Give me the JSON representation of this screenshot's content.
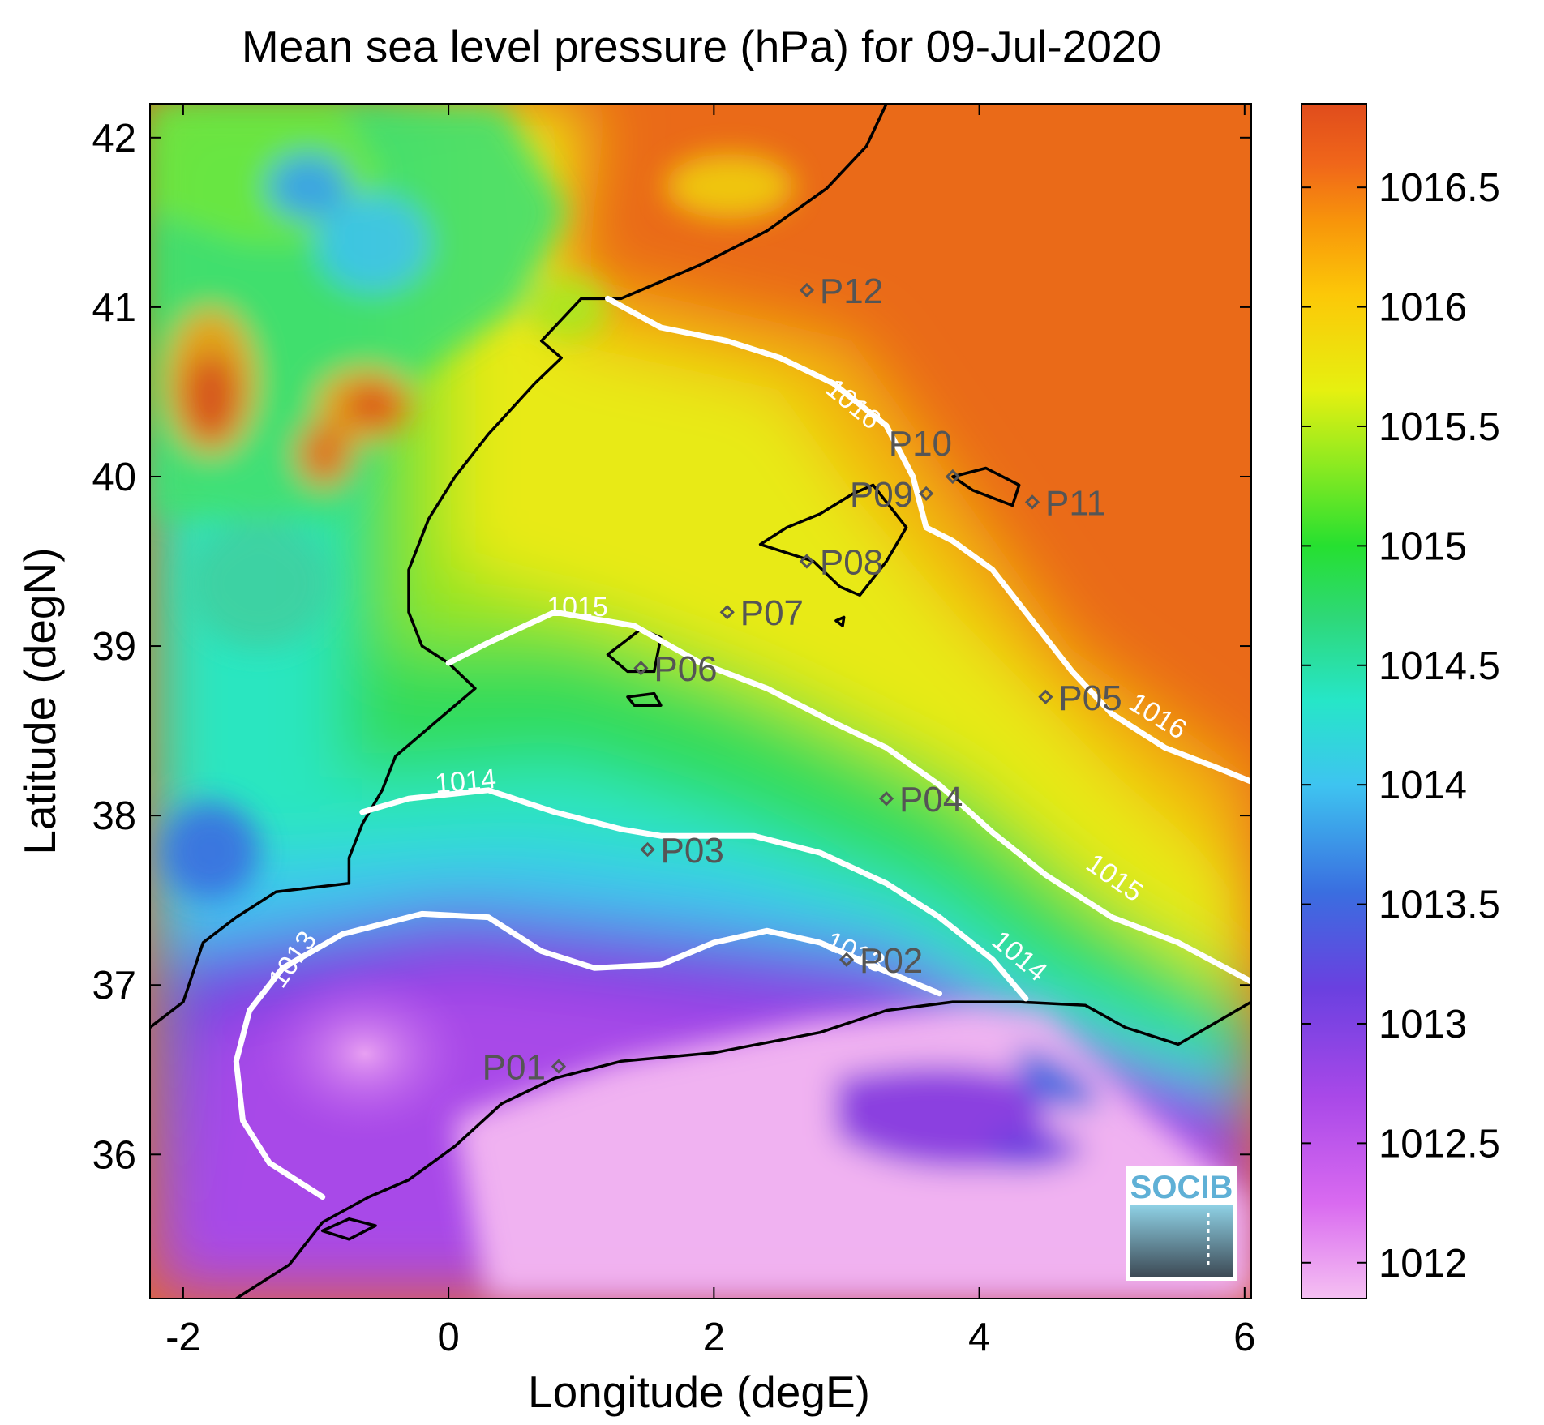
{
  "title": "Mean sea level pressure (hPa) for 09-Jul-2020",
  "x_axis": {
    "label": "Longitude (degE)",
    "range": [
      -2.25,
      6.05
    ],
    "ticks": [
      -2,
      0,
      2,
      4,
      6
    ],
    "tick_labels": [
      "-2",
      "0",
      "2",
      "4",
      "6"
    ]
  },
  "y_axis": {
    "label": "Latitude (degN)",
    "range": [
      35.15,
      42.2
    ],
    "ticks": [
      36,
      37,
      38,
      39,
      40,
      41,
      42
    ],
    "tick_labels": [
      "36",
      "37",
      "38",
      "39",
      "40",
      "41",
      "42"
    ]
  },
  "colorbar": {
    "range": [
      1011.85,
      1016.85
    ],
    "ticks": [
      1012,
      1012.5,
      1013,
      1013.5,
      1014,
      1014.5,
      1015,
      1015.5,
      1016,
      1016.5
    ],
    "tick_labels": [
      "1012",
      "1012.5",
      "1013",
      "1013.5",
      "1014",
      "1014.5",
      "1015",
      "1015.5",
      "1016",
      "1016.5"
    ],
    "colors": [
      "#f5c0f2",
      "#d96af0",
      "#a848e8",
      "#6a40e0",
      "#3a6ee0",
      "#3ec4f0",
      "#26e6c8",
      "#2ed878",
      "#26e030",
      "#90ea20",
      "#e6f010",
      "#fcc808",
      "#f8960a",
      "#f0661a",
      "#e04c1c"
    ]
  },
  "points": [
    {
      "label": "P01",
      "lon": 0.83,
      "lat": 36.52,
      "label_side": "left"
    },
    {
      "label": "P02",
      "lon": 3.0,
      "lat": 37.15,
      "label_side": "right"
    },
    {
      "label": "P03",
      "lon": 1.5,
      "lat": 37.8,
      "label_side": "right"
    },
    {
      "label": "P04",
      "lon": 3.3,
      "lat": 38.1,
      "label_side": "right"
    },
    {
      "label": "P05",
      "lon": 4.5,
      "lat": 38.7,
      "label_side": "right"
    },
    {
      "label": "P06",
      "lon": 1.45,
      "lat": 38.87,
      "label_side": "right"
    },
    {
      "label": "P07",
      "lon": 2.1,
      "lat": 39.2,
      "label_side": "right"
    },
    {
      "label": "P08",
      "lon": 2.7,
      "lat": 39.5,
      "label_side": "right"
    },
    {
      "label": "P09",
      "lon": 3.6,
      "lat": 39.9,
      "label_side": "left"
    },
    {
      "label": "P10",
      "lon": 3.8,
      "lat": 40.0,
      "label_side": "above"
    },
    {
      "label": "P11",
      "lon": 4.4,
      "lat": 39.85,
      "label_side": "right"
    },
    {
      "label": "P12",
      "lon": 2.7,
      "lat": 41.1,
      "label_side": "right"
    }
  ],
  "contour_labels": [
    "1013",
    "1013",
    "1014",
    "1014",
    "1015",
    "1015",
    "1016",
    "1016"
  ],
  "contours": [
    {
      "level": 1013,
      "lonlat": [
        [
          -0.95,
          35.75
        ],
        [
          -1.35,
          35.95
        ],
        [
          -1.55,
          36.2
        ],
        [
          -1.6,
          36.55
        ],
        [
          -1.5,
          36.85
        ],
        [
          -1.25,
          37.1
        ],
        [
          -0.8,
          37.3
        ],
        [
          -0.2,
          37.42
        ],
        [
          0.3,
          37.4
        ],
        [
          0.7,
          37.2
        ],
        [
          1.1,
          37.1
        ],
        [
          1.6,
          37.12
        ],
        [
          2.0,
          37.25
        ],
        [
          2.4,
          37.32
        ],
        [
          2.8,
          37.25
        ],
        [
          3.3,
          37.08
        ],
        [
          3.7,
          36.95
        ]
      ]
    },
    {
      "level": 1014,
      "lonlat": [
        [
          -0.65,
          38.02
        ],
        [
          -0.3,
          38.1
        ],
        [
          0.3,
          38.15
        ],
        [
          0.8,
          38.02
        ],
        [
          1.3,
          37.92
        ],
        [
          1.6,
          37.88
        ],
        [
          2.3,
          37.88
        ],
        [
          2.8,
          37.78
        ],
        [
          3.3,
          37.6
        ],
        [
          3.7,
          37.4
        ],
        [
          4.1,
          37.15
        ],
        [
          4.35,
          36.92
        ]
      ]
    },
    {
      "level": 1015,
      "lonlat": [
        [
          0.0,
          38.9
        ],
        [
          0.3,
          39.02
        ],
        [
          0.8,
          39.2
        ],
        [
          1.4,
          39.12
        ],
        [
          1.9,
          38.9
        ],
        [
          2.4,
          38.75
        ],
        [
          2.9,
          38.55
        ],
        [
          3.3,
          38.4
        ],
        [
          3.7,
          38.18
        ],
        [
          4.1,
          37.9
        ],
        [
          4.5,
          37.65
        ],
        [
          5.0,
          37.4
        ],
        [
          5.5,
          37.25
        ],
        [
          6.05,
          37.02
        ]
      ]
    },
    {
      "level": 1016,
      "lonlat": [
        [
          1.2,
          41.05
        ],
        [
          1.6,
          40.88
        ],
        [
          2.1,
          40.8
        ],
        [
          2.5,
          40.7
        ],
        [
          2.9,
          40.55
        ],
        [
          3.3,
          40.3
        ],
        [
          3.5,
          40.0
        ],
        [
          3.6,
          39.7
        ],
        [
          3.8,
          39.62
        ],
        [
          4.1,
          39.45
        ],
        [
          4.4,
          39.15
        ],
        [
          4.7,
          38.85
        ],
        [
          5.0,
          38.6
        ],
        [
          5.4,
          38.4
        ],
        [
          5.8,
          38.28
        ],
        [
          6.05,
          38.2
        ]
      ]
    }
  ],
  "coastlines": [
    {
      "name": "iberia",
      "lonlat": [
        [
          3.3,
          42.2
        ],
        [
          3.15,
          41.95
        ],
        [
          2.85,
          41.7
        ],
        [
          2.4,
          41.45
        ],
        [
          1.9,
          41.25
        ],
        [
          1.3,
          41.05
        ],
        [
          1.0,
          41.05
        ],
        [
          0.7,
          40.8
        ],
        [
          0.85,
          40.7
        ],
        [
          0.65,
          40.55
        ],
        [
          0.3,
          40.25
        ],
        [
          0.05,
          40.0
        ],
        [
          -0.15,
          39.75
        ],
        [
          -0.3,
          39.45
        ],
        [
          -0.3,
          39.2
        ],
        [
          -0.2,
          39.0
        ],
        [
          0.0,
          38.9
        ],
        [
          0.2,
          38.75
        ],
        [
          -0.1,
          38.55
        ],
        [
          -0.4,
          38.35
        ],
        [
          -0.5,
          38.15
        ],
        [
          -0.65,
          37.95
        ],
        [
          -0.75,
          37.75
        ],
        [
          -0.75,
          37.6
        ],
        [
          -1.3,
          37.55
        ],
        [
          -1.6,
          37.4
        ],
        [
          -1.85,
          37.25
        ],
        [
          -2.0,
          36.9
        ],
        [
          -2.25,
          36.75
        ]
      ]
    },
    {
      "name": "north-africa",
      "lonlat": [
        [
          -1.6,
          35.15
        ],
        [
          -1.2,
          35.35
        ],
        [
          -0.95,
          35.6
        ],
        [
          -0.6,
          35.75
        ],
        [
          -0.3,
          35.85
        ],
        [
          0.05,
          36.05
        ],
        [
          0.4,
          36.3
        ],
        [
          0.8,
          36.45
        ],
        [
          1.3,
          36.55
        ],
        [
          2.0,
          36.6
        ],
        [
          2.8,
          36.72
        ],
        [
          3.3,
          36.85
        ],
        [
          3.8,
          36.9
        ],
        [
          4.3,
          36.9
        ],
        [
          4.8,
          36.88
        ],
        [
          5.1,
          36.75
        ],
        [
          5.5,
          36.65
        ],
        [
          6.05,
          36.9
        ]
      ]
    },
    {
      "name": "mallorca",
      "closed": true,
      "lonlat": [
        [
          2.35,
          39.6
        ],
        [
          2.55,
          39.55
        ],
        [
          2.75,
          39.5
        ],
        [
          2.95,
          39.35
        ],
        [
          3.1,
          39.3
        ],
        [
          3.3,
          39.5
        ],
        [
          3.45,
          39.7
        ],
        [
          3.2,
          39.95
        ],
        [
          3.05,
          39.9
        ],
        [
          2.8,
          39.78
        ],
        [
          2.55,
          39.7
        ],
        [
          2.35,
          39.6
        ]
      ]
    },
    {
      "name": "menorca",
      "closed": true,
      "lonlat": [
        [
          3.8,
          40.0
        ],
        [
          4.05,
          40.05
        ],
        [
          4.3,
          39.95
        ],
        [
          4.25,
          39.83
        ],
        [
          3.95,
          39.92
        ],
        [
          3.8,
          40.0
        ]
      ]
    },
    {
      "name": "ibiza",
      "closed": true,
      "lonlat": [
        [
          1.2,
          38.95
        ],
        [
          1.45,
          39.1
        ],
        [
          1.6,
          39.05
        ],
        [
          1.55,
          38.85
        ],
        [
          1.35,
          38.85
        ],
        [
          1.2,
          38.95
        ]
      ]
    },
    {
      "name": "formentera",
      "closed": true,
      "lonlat": [
        [
          1.35,
          38.7
        ],
        [
          1.55,
          38.72
        ],
        [
          1.6,
          38.65
        ],
        [
          1.4,
          38.65
        ],
        [
          1.35,
          38.7
        ]
      ]
    },
    {
      "name": "cabrera",
      "closed": true,
      "lonlat": [
        [
          2.92,
          39.15
        ],
        [
          2.98,
          39.17
        ],
        [
          2.97,
          39.12
        ],
        [
          2.92,
          39.15
        ]
      ]
    },
    {
      "name": "alboran",
      "closed": true,
      "lonlat": [
        [
          -0.95,
          35.55
        ],
        [
          -0.75,
          35.62
        ],
        [
          -0.55,
          35.58
        ],
        [
          -0.75,
          35.5
        ],
        [
          -0.95,
          35.55
        ]
      ]
    }
  ],
  "logo": {
    "text": "SOCIB"
  },
  "map_colors": {
    "coast": "#000000",
    "contour": "#ffffff",
    "point": "#555555"
  }
}
